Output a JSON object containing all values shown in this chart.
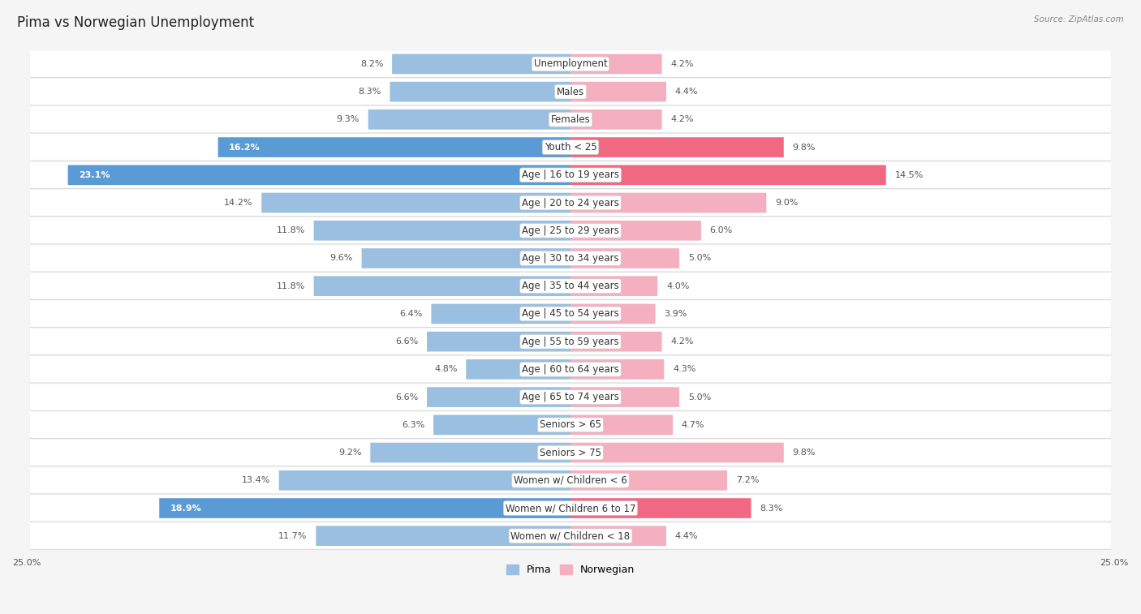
{
  "title": "Pima vs Norwegian Unemployment",
  "source": "Source: ZipAtlas.com",
  "categories": [
    "Unemployment",
    "Males",
    "Females",
    "Youth < 25",
    "Age | 16 to 19 years",
    "Age | 20 to 24 years",
    "Age | 25 to 29 years",
    "Age | 30 to 34 years",
    "Age | 35 to 44 years",
    "Age | 45 to 54 years",
    "Age | 55 to 59 years",
    "Age | 60 to 64 years",
    "Age | 65 to 74 years",
    "Seniors > 65",
    "Seniors > 75",
    "Women w/ Children < 6",
    "Women w/ Children 6 to 17",
    "Women w/ Children < 18"
  ],
  "pima_values": [
    8.2,
    8.3,
    9.3,
    16.2,
    23.1,
    14.2,
    11.8,
    9.6,
    11.8,
    6.4,
    6.6,
    4.8,
    6.6,
    6.3,
    9.2,
    13.4,
    18.9,
    11.7
  ],
  "norwegian_values": [
    4.2,
    4.4,
    4.2,
    9.8,
    14.5,
    9.0,
    6.0,
    5.0,
    4.0,
    3.9,
    4.2,
    4.3,
    5.0,
    4.7,
    9.8,
    7.2,
    8.3,
    4.4
  ],
  "pima_color": "#9abfe0",
  "norwegian_color": "#f4afc0",
  "pima_highlight_color": "#5b9bd5",
  "norwegian_highlight_color": "#f06882",
  "highlight_rows": [
    3,
    4,
    16
  ],
  "axis_max": 25.0,
  "background_color": "#f5f5f5",
  "row_bg_color": "#ffffff",
  "row_shadow_color": "#d8d8d8",
  "title_fontsize": 12,
  "label_fontsize": 8.5,
  "value_fontsize": 8.0
}
